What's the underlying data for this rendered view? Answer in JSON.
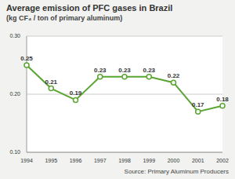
{
  "chart_data": {
    "type": "line",
    "title": "Average emission of PFC gases in Brazil",
    "subtitle": "(kg CF₄ / ton of primary aluminum)",
    "source": "Source: Primary Aluminum Producers",
    "categories": [
      "1994",
      "1995",
      "1996",
      "1997",
      "1998",
      "1999",
      "2000",
      "2001",
      "2002"
    ],
    "values": [
      0.25,
      0.21,
      0.19,
      0.23,
      0.23,
      0.23,
      0.22,
      0.17,
      0.18
    ],
    "color": "#5ba532",
    "marker": "circle",
    "ylim": [
      0.1,
      0.3
    ],
    "yticks": [
      {
        "value": 0.1,
        "label": "0.10"
      },
      {
        "value": 0.2,
        "label": "0.20"
      },
      {
        "value": 0.3,
        "label": "0.30"
      }
    ],
    "grid": true,
    "data_labels": true
  }
}
